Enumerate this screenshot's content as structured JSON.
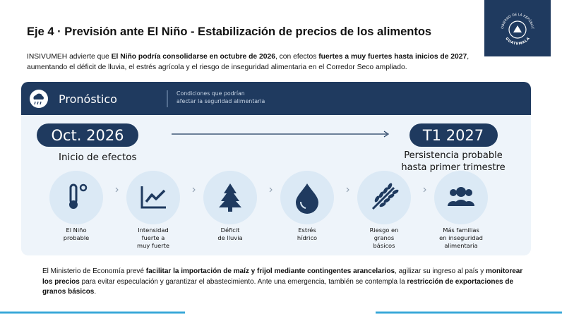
{
  "header": {
    "title": "Eje 4 · Previsión ante El Niño - Estabilización de precios de los alimentos",
    "logo_top": "GOBIERNO DE LA REPÚBLICA",
    "logo_bottom": "GUATEMALA"
  },
  "intro": [
    {
      "text": "INSIVUMEH advierte que ",
      "bold": false
    },
    {
      "text": "El Niño podría consolidarse en octubre de 2026",
      "bold": true
    },
    {
      "text": ", con efectos ",
      "bold": false
    },
    {
      "text": "fuertes a muy fuertes hasta inicios de 2027",
      "bold": true
    },
    {
      "text": ", aumentando el déficit de lluvia, el estrés agrícola y el riesgo de inseguridad alimentaria en el Corredor Seco ampliado.",
      "bold": false
    }
  ],
  "panel": {
    "title": "Pronóstico",
    "subtitle": [
      "Condiciones que podrían",
      "afectar la seguridad alimentaria"
    ],
    "start": {
      "date": "Oct. 2026",
      "caption": [
        "Inicio de efectos"
      ]
    },
    "end": {
      "date": "T1 2027",
      "caption": [
        "Persistencia probable",
        "hasta primer trimestre"
      ]
    },
    "items": [
      {
        "label": [
          "El Niño",
          "probable"
        ]
      },
      {
        "label": [
          "Intensidad",
          "fuerte a",
          "muy fuerte"
        ]
      },
      {
        "label": [
          "Déficit",
          "de lluvia"
        ]
      },
      {
        "label": [
          "Estrés",
          "hídrico"
        ]
      },
      {
        "label": [
          "Riesgo en",
          "granos",
          "básicos"
        ]
      },
      {
        "label": [
          "Más familias",
          "en inseguridad",
          "alimentaria"
        ]
      }
    ]
  },
  "footer": [
    {
      "text": "El Ministerio de Economía prevé ",
      "bold": false
    },
    {
      "text": "facilitar la importación de maíz y frijol mediante contingentes arancelarios",
      "bold": true
    },
    {
      "text": ", agilizar su ingreso al país y ",
      "bold": false
    },
    {
      "text": "monitorear los precios",
      "bold": true
    },
    {
      "text": " para evitar especulación y garantizar el abastecimiento. Ante una emergencia, también se contempla la ",
      "bold": false
    },
    {
      "text": "restricción de exportaciones de granos básicos",
      "bold": true
    },
    {
      "text": ".",
      "bold": false
    }
  ]
}
